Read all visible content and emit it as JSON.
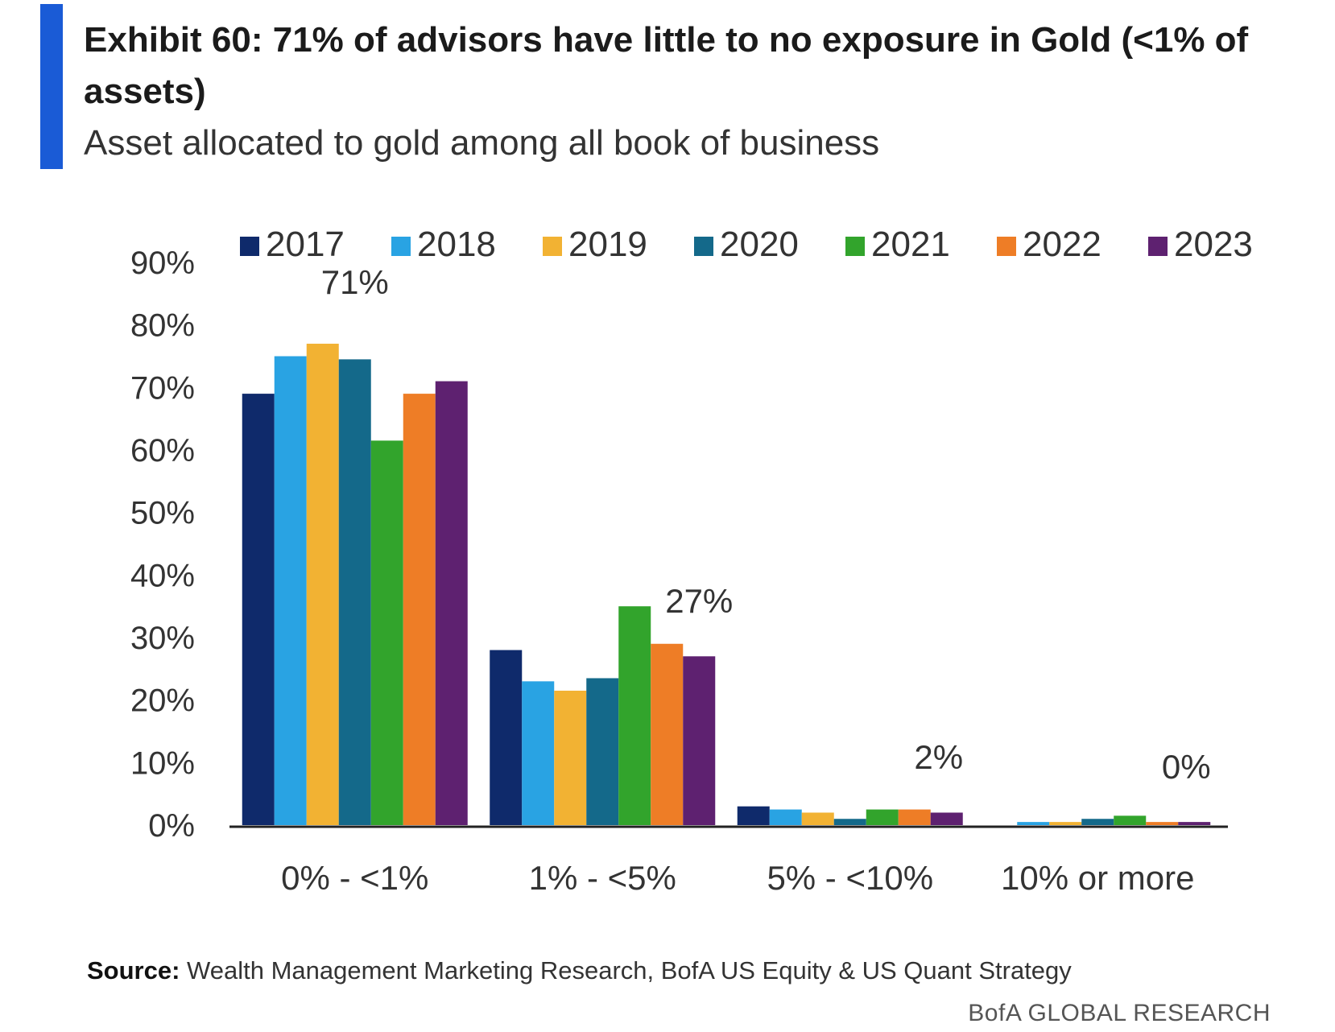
{
  "header": {
    "title": "Exhibit 60: 71% of advisors have little to no exposure in Gold (<1% of assets)",
    "subtitle": "Asset allocated to gold among all book of business"
  },
  "footer": {
    "source_label": "Source:",
    "source_text": "Wealth Management Marketing Research, BofA US Equity & US Quant Strategy",
    "brand": "BofA GLOBAL RESEARCH"
  },
  "colors": {
    "accent": "#1a5bd6",
    "2017": "#0f2a6b",
    "2018": "#29a3e3",
    "2019": "#f2b233",
    "2020": "#14698a",
    "2021": "#32a42c",
    "2022": "#ee7d26",
    "2023": "#5e2170"
  },
  "chart_data": {
    "type": "bar",
    "categories": [
      "0% - <1%",
      "1% - <5%",
      "5% - <10%",
      "10% or more"
    ],
    "series": [
      {
        "name": "2017",
        "values": [
          69,
          28,
          3,
          0
        ]
      },
      {
        "name": "2018",
        "values": [
          75,
          23,
          2.5,
          0.5
        ]
      },
      {
        "name": "2019",
        "values": [
          77,
          21.5,
          2,
          0.5
        ]
      },
      {
        "name": "2020",
        "values": [
          74.5,
          23.5,
          1,
          1
        ]
      },
      {
        "name": "2021",
        "values": [
          61.5,
          35,
          2.5,
          1.5
        ]
      },
      {
        "name": "2022",
        "values": [
          69,
          29,
          2.5,
          0.5
        ]
      },
      {
        "name": "2023",
        "values": [
          71,
          27,
          2,
          0.5
        ]
      }
    ],
    "ylim": [
      0,
      90
    ],
    "yticks": [
      "0%",
      "10%",
      "20%",
      "30%",
      "40%",
      "50%",
      "60%",
      "70%",
      "80%",
      "90%"
    ],
    "annotations": [
      "71%",
      "27%",
      "2%",
      "0%"
    ],
    "legend_position": "top",
    "grid": false
  }
}
